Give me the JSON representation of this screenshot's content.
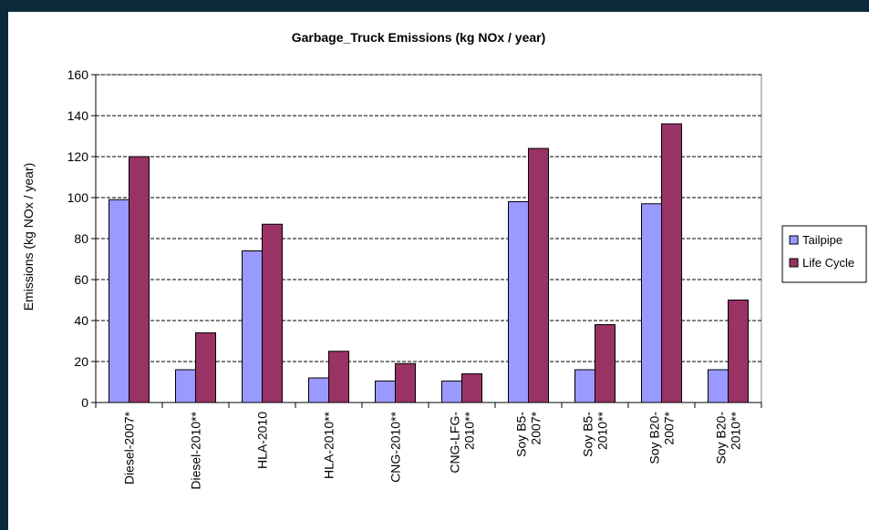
{
  "chart_data": {
    "type": "bar",
    "title": "Garbage_Truck Emissions  (kg NOx / year)",
    "ylabel": "Emissions (kg NOx / year)",
    "xlabel": "",
    "ylim": [
      0,
      160
    ],
    "yticks": [
      0,
      20,
      40,
      60,
      80,
      100,
      120,
      140,
      160
    ],
    "grid": true,
    "legend_position": "right",
    "categories": [
      [
        "Diesel-2007*"
      ],
      [
        "Diesel-2010**"
      ],
      [
        "HLA-2010"
      ],
      [
        "HLA-2010**"
      ],
      [
        "CNG-2010**"
      ],
      [
        "CNG-LFG-",
        "2010**"
      ],
      [
        "Soy B5-",
        "2007*"
      ],
      [
        "Soy B5-",
        "2010**"
      ],
      [
        "Soy B20-",
        "2007*"
      ],
      [
        "Soy B20-",
        "2010**"
      ]
    ],
    "series": [
      {
        "name": "Tailpipe",
        "color": "#9999ff",
        "values": [
          99,
          16,
          74,
          12,
          10.5,
          10.5,
          98,
          16,
          97,
          16
        ]
      },
      {
        "name": "Life Cycle",
        "color": "#993366",
        "values": [
          120,
          34,
          87,
          25,
          19,
          14,
          124,
          38,
          136,
          50
        ]
      }
    ]
  }
}
